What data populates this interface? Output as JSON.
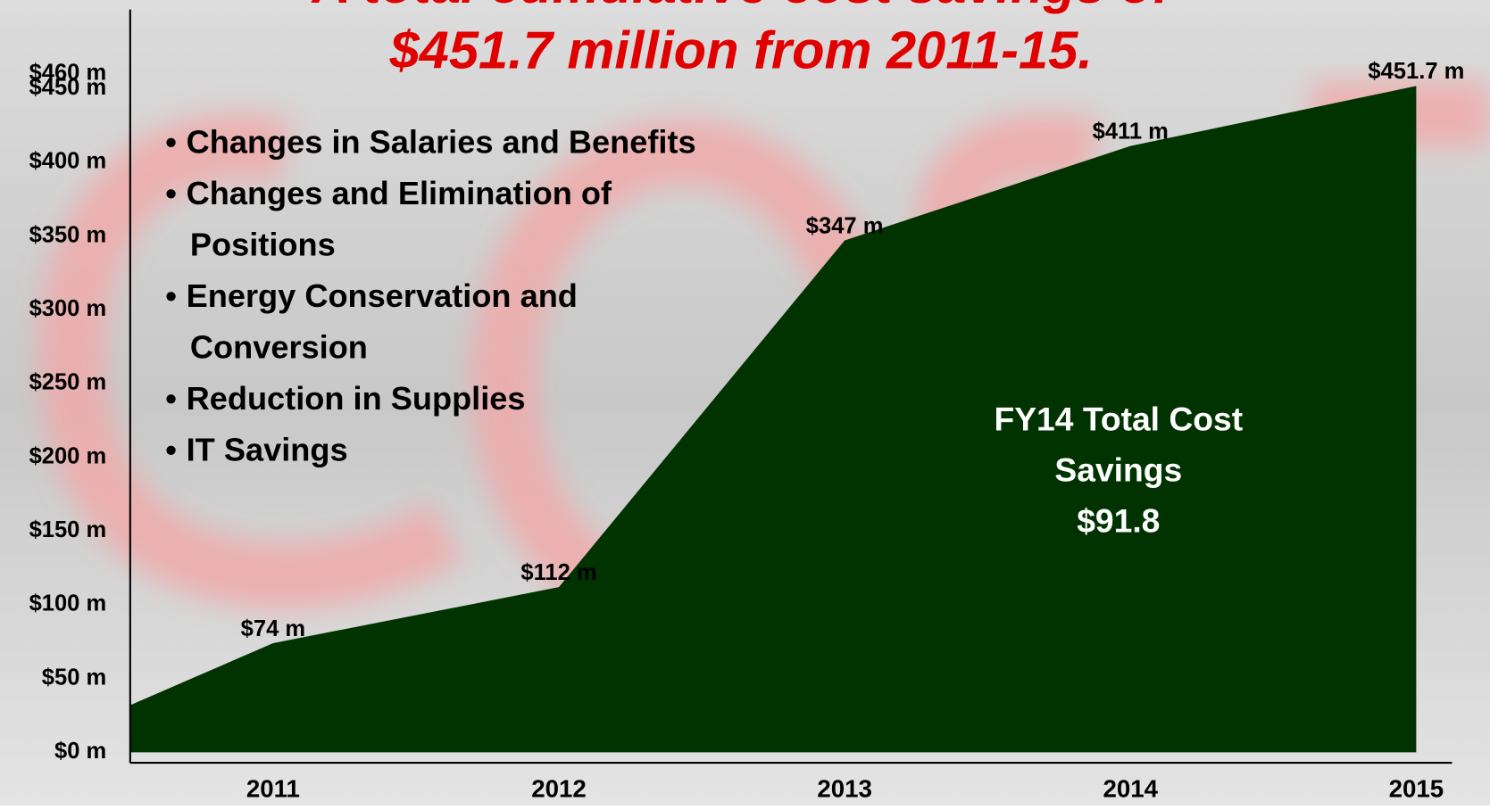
{
  "chart_data": {
    "type": "area",
    "title_lines": [
      "A total cumulative cost savings of",
      "$451.7 million from 2011-15."
    ],
    "bullets": [
      [
        "Changes in Salaries and Benefits"
      ],
      [
        "Changes and Elimination of",
        "Positions"
      ],
      [
        "Energy Conservation and",
        "Conversion"
      ],
      [
        "Reduction in Supplies"
      ],
      [
        "IT Savings"
      ]
    ],
    "annotation": [
      "FY14 Total Cost",
      "Savings",
      "$91.8"
    ],
    "x": [
      2010.5,
      2011,
      2012,
      2013,
      2014,
      2015
    ],
    "values": [
      32,
      74,
      112,
      347,
      411,
      451.7
    ],
    "value_labels": [
      null,
      "$74 m",
      "$112 m",
      "$347 m",
      "$411 m",
      "$451.7 m"
    ],
    "color": "#003300",
    "xlim": [
      2010.5,
      2015.1
    ],
    "xticks": [
      2011,
      2012,
      2013,
      2014,
      2015
    ],
    "ylim": [
      0,
      460
    ],
    "yticks": [
      {
        "value": 0,
        "label": "$0 m"
      },
      {
        "value": 50,
        "label": "$50 m"
      },
      {
        "value": 100,
        "label": "$100 m"
      },
      {
        "value": 150,
        "label": "$150 m"
      },
      {
        "value": 200,
        "label": "$200 m"
      },
      {
        "value": 250,
        "label": "$250 m"
      },
      {
        "value": 300,
        "label": "$300 m"
      },
      {
        "value": 350,
        "label": "$350 m"
      },
      {
        "value": 400,
        "label": "$400 m"
      },
      {
        "value": 450,
        "label": "$450 m"
      },
      {
        "value": 460,
        "label": "$460 m"
      }
    ]
  }
}
